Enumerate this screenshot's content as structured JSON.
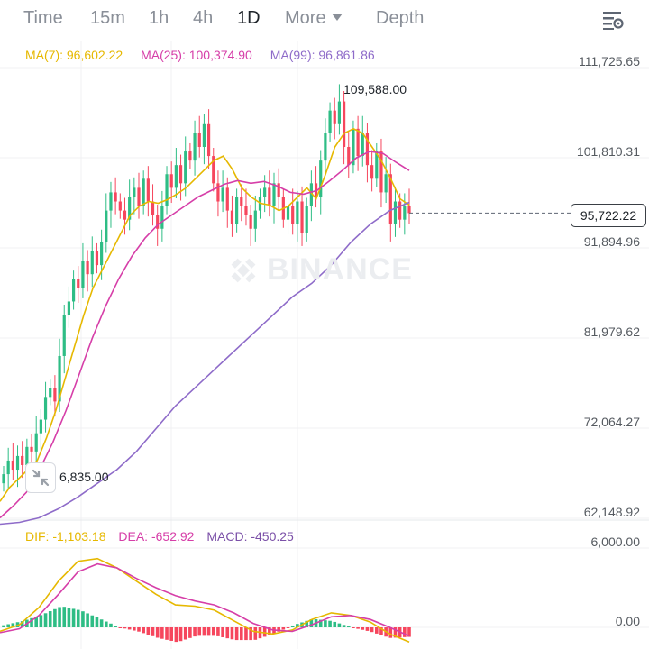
{
  "tabs": [
    {
      "label": "Time"
    },
    {
      "label": "15m"
    },
    {
      "label": "1h"
    },
    {
      "label": "4h"
    },
    {
      "label": "1D"
    },
    {
      "label": "More"
    },
    {
      "label": "Depth"
    }
  ],
  "active_tab": "1D",
  "settings_icon": "chart-settings-icon",
  "ma_legend": {
    "ma7": "MA(7): 96,602.22",
    "ma25": "MA(25): 100,374.90",
    "ma99": "MA(99): 96,861.86"
  },
  "macd_legend": {
    "dif": "DIF: -1,103.18",
    "dea": "DEA: -652.92",
    "macd": "MACD: -450.25"
  },
  "current_price": "95,722.22",
  "high_label": "109,588.00",
  "low_label": "6,835.00",
  "watermark": "BINANCE",
  "colors": {
    "up": "#2ebd85",
    "down": "#f6465d",
    "ma7": "#e6b800",
    "ma25": "#d63ea8",
    "ma99": "#8e6bc9",
    "dif": "#e6b800",
    "dea": "#d63ea8",
    "macd": "#7b50a8"
  },
  "chart_data": {
    "type": "candlestick",
    "price_axis": {
      "ticks": [
        "111,725.65",
        "101,810.31",
        "91,894.96",
        "81,979.62",
        "72,064.27",
        "62,148.92"
      ],
      "tick_values": [
        111725.65,
        101810.31,
        91894.96,
        81979.62,
        72064.27,
        62148.92
      ]
    },
    "macd_axis": {
      "ticks": [
        "6,000.00",
        "0.00"
      ],
      "tick_values": [
        6000,
        0
      ]
    },
    "current_price_value": 95722.22,
    "high_value": 109588.0,
    "candles_close": [
      67000,
      68500,
      67500,
      69000,
      68000,
      70000,
      69500,
      71500,
      73000,
      75500,
      76500,
      75000,
      80000,
      84500,
      86000,
      88500,
      87500,
      90500,
      89000,
      91500,
      90000,
      92500,
      96000,
      98000,
      97000,
      96000,
      95000,
      97500,
      98500,
      96500,
      99500,
      97000,
      95500,
      94000,
      96500,
      100000,
      98500,
      101000,
      99000,
      102500,
      101500,
      104500,
      103000,
      105500,
      102000,
      99000,
      97000,
      98500,
      96000,
      94500,
      97500,
      96500,
      95500,
      94000,
      96000,
      97500,
      98500,
      96500,
      99000,
      97500,
      95000,
      96500,
      94500,
      97000,
      93500,
      96500,
      99000,
      97500,
      101500,
      104500,
      107000,
      105500,
      108000,
      103000,
      101000,
      105000,
      102000,
      104500,
      101000,
      99500,
      102500,
      98000,
      100000,
      94500,
      97000,
      95000,
      96500,
      95722.22
    ],
    "ma_lines": {
      "ma7_approx": [
        64000,
        65500,
        66500,
        67500,
        68500,
        71000,
        74000,
        77500,
        81000,
        84500,
        87500,
        89500,
        91500,
        93500,
        95500,
        96500,
        97000,
        96800,
        97200,
        97800,
        98500,
        99500,
        100500,
        101500,
        102000,
        100500,
        98500,
        97500,
        96800,
        96600,
        96000,
        96500,
        97500,
        98500,
        97300,
        100000,
        103000,
        104500,
        105000,
        104500,
        103000,
        101500,
        99500,
        97300,
        96600
      ],
      "ma25_approx": [
        62200,
        63500,
        65000,
        67500,
        70500,
        74000,
        78000,
        82000,
        85500,
        88500,
        91000,
        93000,
        94500,
        95500,
        96500,
        97500,
        98200,
        98900,
        99300,
        99000,
        99200,
        98700,
        98000,
        97800,
        98200,
        99300,
        100500,
        101800,
        102500,
        102300,
        101300,
        100400
      ],
      "ma99_approx": [
        61500,
        61700,
        62200,
        63200,
        64500,
        66000,
        67500,
        69500,
        72000,
        74500,
        76500,
        78500,
        80500,
        82500,
        84500,
        86500,
        88000,
        90000,
        92500,
        94500,
        96000,
        96900
      ]
    },
    "macd_series": {
      "dif_approx": [
        -300,
        200,
        1500,
        3500,
        5000,
        5200,
        4500,
        3500,
        2500,
        1700,
        1600,
        1300,
        500,
        -300,
        -500,
        -200,
        600,
        1100,
        900,
        400,
        -500,
        -1103.18
      ],
      "dea_approx": [
        -400,
        -100,
        900,
        2500,
        4200,
        4800,
        4500,
        3700,
        3000,
        2400,
        2000,
        1700,
        1100,
        300,
        -200,
        -300,
        200,
        800,
        900,
        600,
        0,
        -652.92
      ]
    },
    "grid": true
  }
}
